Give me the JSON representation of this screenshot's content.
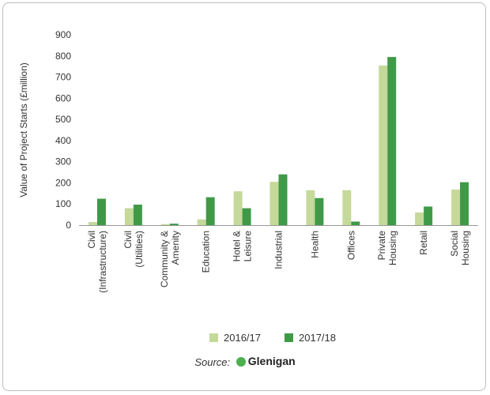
{
  "colors": {
    "series_2016": "#c5d99a",
    "series_2017": "#3f9a48",
    "axis": "#999999"
  },
  "source": {
    "label": "Source:",
    "brand": "Glenigan"
  },
  "chart_data": {
    "type": "bar",
    "ylabel": "Value of Project Starts (£million)",
    "ylim": [
      0,
      900
    ],
    "yticks": [
      0,
      100,
      200,
      300,
      400,
      500,
      600,
      700,
      800,
      900
    ],
    "categories": [
      [
        "Civil",
        "(Infrastructure)"
      ],
      [
        "Civil",
        "(Utilities)"
      ],
      [
        "Community &",
        "Amenity"
      ],
      [
        "Education"
      ],
      [
        "Hotel &",
        "Leisure"
      ],
      [
        "Industrial"
      ],
      [
        "Health"
      ],
      [
        "Offices"
      ],
      [
        "Private",
        "Housing"
      ],
      [
        "Retail"
      ],
      [
        "Social",
        "Housing"
      ]
    ],
    "series": [
      {
        "name": "2016/17",
        "values": [
          15,
          80,
          5,
          27,
          160,
          205,
          165,
          165,
          755,
          60,
          168
        ]
      },
      {
        "name": "2017/18",
        "values": [
          125,
          97,
          7,
          132,
          80,
          240,
          128,
          17,
          795,
          88,
          203
        ]
      }
    ],
    "legend": "bottom",
    "grid": false
  }
}
